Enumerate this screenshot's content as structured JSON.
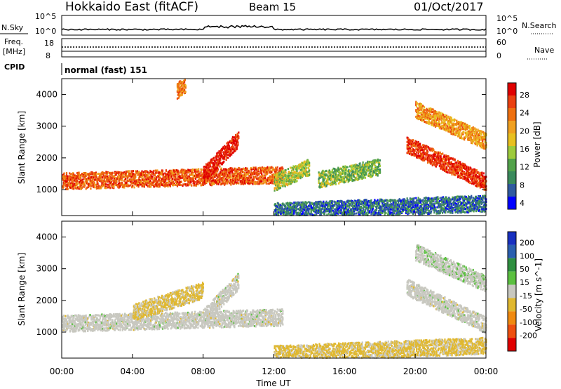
{
  "header": {
    "station": "Hokkaido East (fitACF)",
    "beam": "Beam 15",
    "date": "01/Oct/2017"
  },
  "aux_panels": {
    "nsky": {
      "label": "N.Sky",
      "tick_top": "10^5",
      "tick_bottom": "10^0",
      "right_label": "N.Search",
      "right_tick_top": "10^5",
      "right_tick_bottom": "10^0"
    },
    "freq": {
      "label_top": "Freq.",
      "label_unit": "[MHz]",
      "tick_top": "18",
      "tick_bottom": "8",
      "right_label": "Nave",
      "right_tick_top": "60",
      "right_tick_bottom": "0"
    },
    "cpid": {
      "label": "CPID",
      "value": "normal (fast) 151"
    }
  },
  "colors": {
    "power_scale": [
      "#0000ff",
      "#2f5aa0",
      "#3a8a5c",
      "#52a24a",
      "#9ecb3c",
      "#e8c020",
      "#f0a020",
      "#ee7010",
      "#ea4010",
      "#e00000"
    ],
    "velocity_scale": [
      "#1830c0",
      "#2a5fb0",
      "#2f8f40",
      "#5bc040",
      "#c8c8c0",
      "#e0b830",
      "#f08a10",
      "#ee5010",
      "#e00000"
    ]
  },
  "chart_data": [
    {
      "type": "heatmap",
      "title": "",
      "ylabel": "Slant Range [km]",
      "xlabel": "Time UT",
      "x_ticks": [
        "00:00",
        "04:00",
        "08:00",
        "12:00",
        "16:00",
        "20:00",
        "00:00"
      ],
      "y_ticks": [
        1000,
        2000,
        3000,
        4000
      ],
      "xlim": [
        0,
        24
      ],
      "ylim": [
        180,
        4500
      ],
      "colorbar": {
        "label": "Power [dB]",
        "ticks": [
          "4",
          "8",
          "12",
          "16",
          "20",
          "24",
          "28"
        ],
        "range": [
          0,
          30
        ]
      },
      "features": [
        {
          "time": [
            0.0,
            12.5
          ],
          "range_start": 1250,
          "range_end": 1450,
          "value": 24
        },
        {
          "time": [
            8.0,
            10.0
          ],
          "range_start": 1450,
          "range_end": 2600,
          "value": 28
        },
        {
          "time": [
            12.0,
            14.0
          ],
          "range_start": 1200,
          "range_end": 1700,
          "value": 14
        },
        {
          "time": [
            14.5,
            18.0
          ],
          "range_start": 1300,
          "range_end": 1700,
          "value": 12
        },
        {
          "time": [
            12.0,
            24.0
          ],
          "range_start": 300,
          "range_end": 550,
          "value": 6
        },
        {
          "time": [
            19.5,
            24.0
          ],
          "range_start": 2400,
          "range_end": 1200,
          "value": 26
        },
        {
          "time": [
            20.0,
            24.0
          ],
          "range_start": 3500,
          "range_end": 2500,
          "value": 20
        },
        {
          "time": [
            6.5,
            7.0
          ],
          "range_start": 4100,
          "range_end": 4300,
          "value": 22
        }
      ]
    },
    {
      "type": "heatmap",
      "title": "",
      "ylabel": "Slant Range [km]",
      "xlabel": "Time UT",
      "x_ticks": [
        "00:00",
        "04:00",
        "08:00",
        "12:00",
        "16:00",
        "20:00",
        "00:00"
      ],
      "y_ticks": [
        1000,
        2000,
        3000,
        4000
      ],
      "xlim": [
        0,
        24
      ],
      "ylim": [
        180,
        4500
      ],
      "colorbar": {
        "label": "Velocity [m s^-1]",
        "ticks": [
          "200",
          "100",
          "50",
          "15",
          "-15",
          "-50",
          "-100",
          "-200"
        ],
        "range": [
          -250,
          250
        ]
      },
      "features": [
        {
          "time": [
            0.0,
            12.5
          ],
          "range_start": 1250,
          "range_end": 1450,
          "value": 0
        },
        {
          "time": [
            4.0,
            8.0
          ],
          "range_start": 1600,
          "range_end": 2300,
          "value": -40
        },
        {
          "time": [
            8.0,
            10.0
          ],
          "range_start": 1450,
          "range_end": 2600,
          "value": 0
        },
        {
          "time": [
            12.0,
            24.0
          ],
          "range_start": 300,
          "range_end": 550,
          "value": -40
        },
        {
          "time": [
            19.5,
            24.0
          ],
          "range_start": 2400,
          "range_end": 1200,
          "value": 0
        },
        {
          "time": [
            20.0,
            24.0
          ],
          "range_start": 3500,
          "range_end": 2500,
          "value": 10
        }
      ]
    }
  ]
}
